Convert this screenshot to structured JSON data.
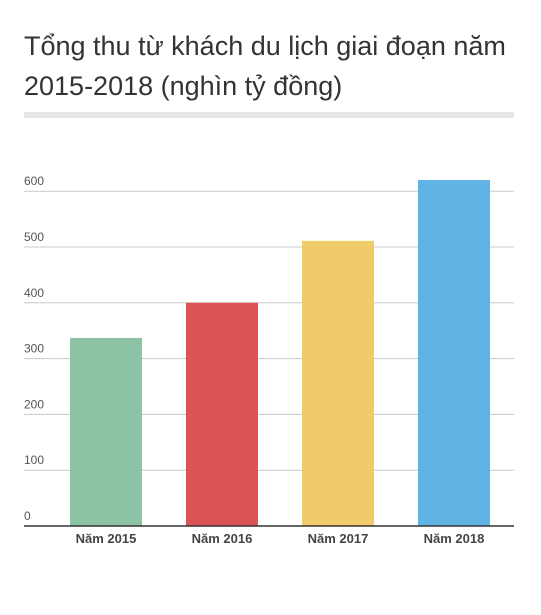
{
  "title": "Tổng thu từ khách du lịch giai đoạn năm 2015-2018 (nghìn tỷ đồng)",
  "chart_data": {
    "type": "bar",
    "title": "Tổng thu từ khách du lịch giai đoạn năm 2015-2018 (nghìn tỷ đồng)",
    "xlabel": "",
    "ylabel": "",
    "categories": [
      "Năm 2015",
      "Năm 2016",
      "Năm 2017",
      "Năm 2018"
    ],
    "values": [
      337,
      400,
      511,
      620
    ],
    "colors": [
      "#8cc3a5",
      "#dc5356",
      "#efcb6a",
      "#5fb4e5"
    ],
    "ylim": [
      0,
      600
    ],
    "yticks": [
      0,
      100,
      200,
      300,
      400,
      500,
      600
    ],
    "grid": true,
    "legend": "none"
  }
}
